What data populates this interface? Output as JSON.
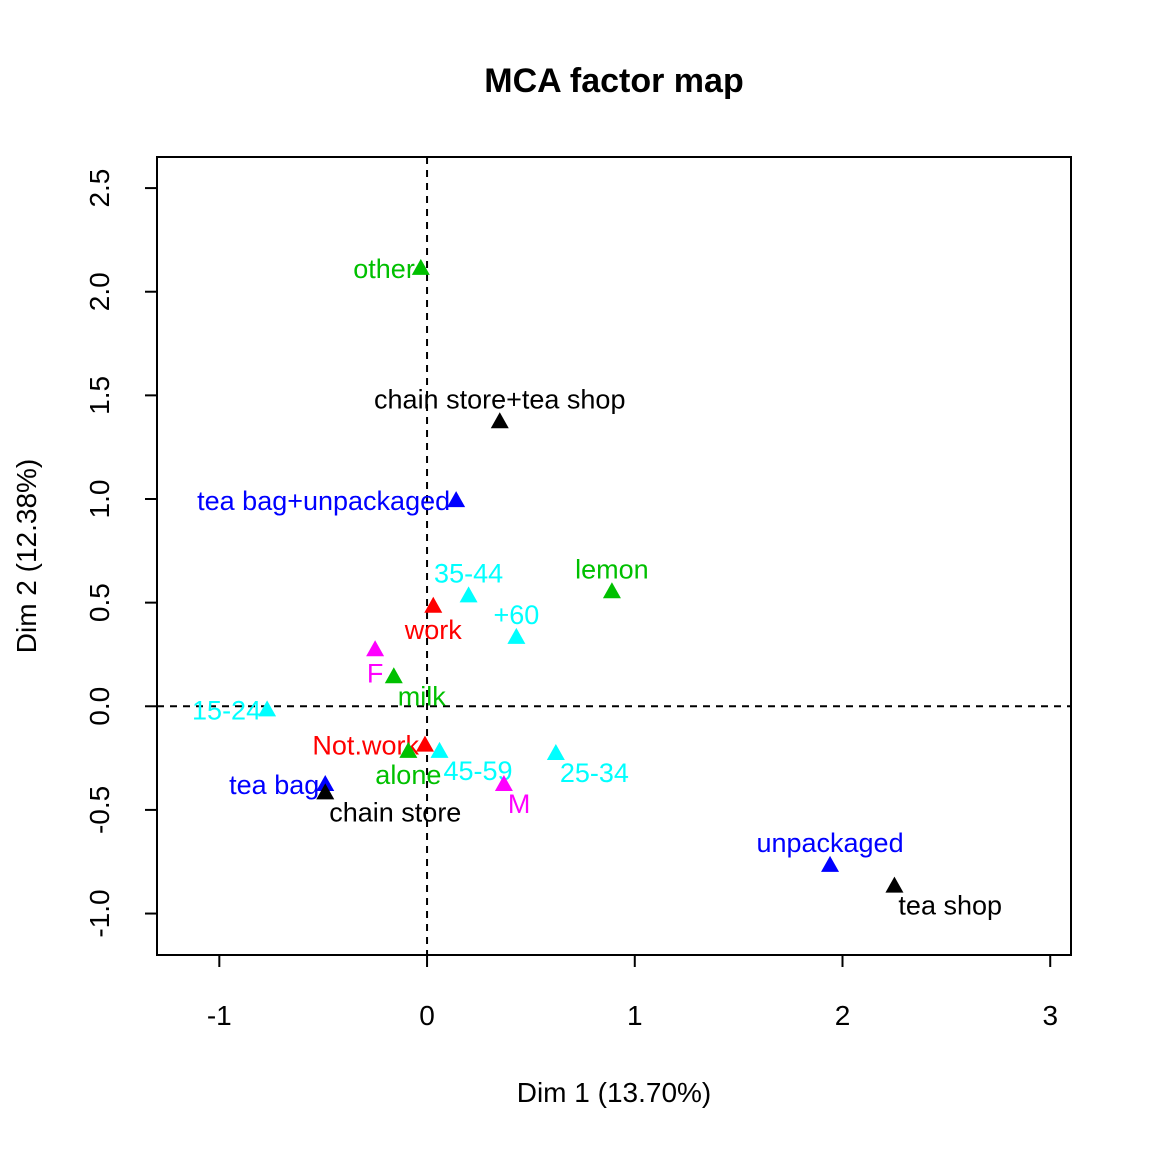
{
  "chart_data": {
    "type": "scatter",
    "title": "MCA factor map",
    "xlabel": "Dim 1 (13.70%)",
    "ylabel": "Dim 2 (12.38%)",
    "xlim": [
      -1.3,
      3.1
    ],
    "ylim": [
      -1.2,
      2.65
    ],
    "xticks": [
      -1,
      0,
      1,
      2,
      3
    ],
    "yticks": [
      -1.0,
      -0.5,
      0.0,
      0.5,
      1.0,
      1.5,
      2.0,
      2.5
    ],
    "xtick_labels": [
      "-1",
      "0",
      "1",
      "2",
      "3"
    ],
    "ytick_labels": [
      "-1.0",
      "-0.5",
      "0.0",
      "0.5",
      "1.0",
      "1.5",
      "2.0",
      "2.5"
    ],
    "reference_lines": {
      "x": 0,
      "y": 0,
      "style": "dashed"
    },
    "grid": false,
    "legend": "none",
    "marker": "triangle",
    "colors": {
      "black": "#000000",
      "blue": "#0000ff",
      "green": "#00c000",
      "red": "#ff0000",
      "cyan": "#00ffff",
      "magenta": "#ff00ff"
    },
    "points": [
      {
        "label": "other",
        "x": -0.03,
        "y": 2.11,
        "color": "#00c000",
        "pos": "left"
      },
      {
        "label": "chain store+tea shop",
        "x": 0.35,
        "y": 1.37,
        "color": "#000000",
        "pos": "top"
      },
      {
        "label": "tea bag+unpackaged",
        "x": 0.14,
        "y": 0.99,
        "color": "#0000ff",
        "pos": "left"
      },
      {
        "label": "lemon",
        "x": 0.89,
        "y": 0.55,
        "color": "#00c000",
        "pos": "top"
      },
      {
        "label": "35-44",
        "x": 0.2,
        "y": 0.53,
        "color": "#00ffff",
        "pos": "top"
      },
      {
        "label": "work",
        "x": 0.03,
        "y": 0.48,
        "color": "#ff0000",
        "pos": "bottom"
      },
      {
        "label": "+60",
        "x": 0.43,
        "y": 0.33,
        "color": "#00ffff",
        "pos": "top"
      },
      {
        "label": "F",
        "x": -0.25,
        "y": 0.27,
        "color": "#ff00ff",
        "pos": "bottom"
      },
      {
        "label": "milk",
        "x": -0.16,
        "y": 0.14,
        "color": "#00c000",
        "pos": "right"
      },
      {
        "label": "15-24",
        "x": -0.77,
        "y": -0.02,
        "color": "#00ffff",
        "pos": "left"
      },
      {
        "label": "Not.work",
        "x": -0.01,
        "y": -0.19,
        "color": "#ff0000",
        "pos": "left"
      },
      {
        "label": "45-59",
        "x": 0.06,
        "y": -0.22,
        "color": "#00ffff",
        "pos": "right"
      },
      {
        "label": "alone",
        "x": -0.09,
        "y": -0.22,
        "color": "#00c000",
        "pos": "bottom"
      },
      {
        "label": "25-34",
        "x": 0.62,
        "y": -0.23,
        "color": "#00ffff",
        "pos": "right"
      },
      {
        "label": "tea bag",
        "x": -0.49,
        "y": -0.38,
        "color": "#0000ff",
        "pos": "left"
      },
      {
        "label": "chain store",
        "x": -0.49,
        "y": -0.42,
        "color": "#000000",
        "pos": "right"
      },
      {
        "label": "M",
        "x": 0.37,
        "y": -0.38,
        "color": "#ff00ff",
        "pos": "right"
      },
      {
        "label": "unpackaged",
        "x": 1.94,
        "y": -0.77,
        "color": "#0000ff",
        "pos": "top"
      },
      {
        "label": "tea shop",
        "x": 2.25,
        "y": -0.87,
        "color": "#000000",
        "pos": "right"
      }
    ]
  }
}
